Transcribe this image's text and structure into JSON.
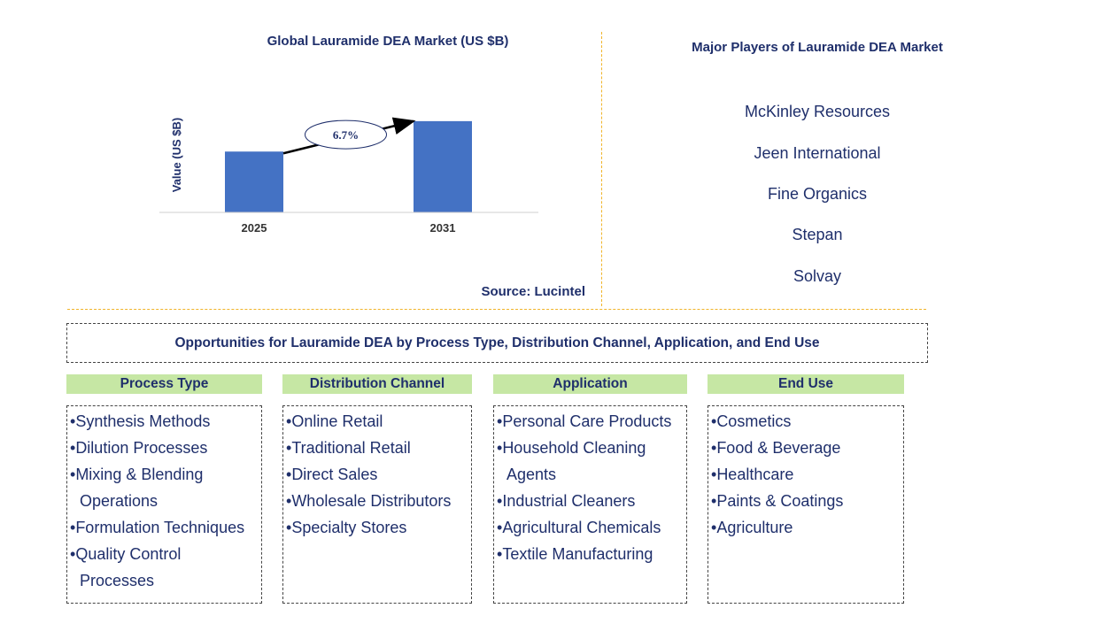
{
  "chart_data": {
    "type": "bar",
    "title": "Global Lauramide DEA Market (US $B)",
    "ylabel": "Value (US $B)",
    "xlabel": "",
    "categories": [
      "2025",
      "2031"
    ],
    "values": [
      1.0,
      1.5
    ],
    "ylim": [
      0,
      1.6
    ],
    "bar_color": "#4472c4",
    "growth_annotation": "6.7%",
    "source": "Source: Lucintel"
  },
  "players": {
    "title": "Major Players of Lauramide DEA Market",
    "items": [
      "McKinley Resources",
      "Jeen International",
      "Fine Organics",
      "Stepan",
      "Solvay"
    ]
  },
  "opportunities": {
    "title": "Opportunities for Lauramide DEA by Process Type, Distribution Channel, Application, and End Use",
    "header_color": "#c6e7a4",
    "columns": [
      {
        "heading": "Process Type",
        "items": [
          "Synthesis Methods",
          "Dilution Processes",
          "Mixing & Blending Operations",
          "Formulation Techniques",
          "Quality Control Processes"
        ]
      },
      {
        "heading": "Distribution Channel",
        "items": [
          "Online Retail",
          "Traditional Retail",
          "Direct Sales",
          "Wholesale Distributors",
          "Specialty Stores"
        ]
      },
      {
        "heading": "Application",
        "items": [
          "Personal Care Products",
          "Household Cleaning Agents",
          "Industrial Cleaners",
          "Agricultural Chemicals",
          "Textile Manufacturing"
        ]
      },
      {
        "heading": "End Use",
        "items": [
          "Cosmetics",
          "Food & Beverage",
          "Healthcare",
          "Paints & Coatings",
          "Agriculture"
        ]
      }
    ]
  }
}
